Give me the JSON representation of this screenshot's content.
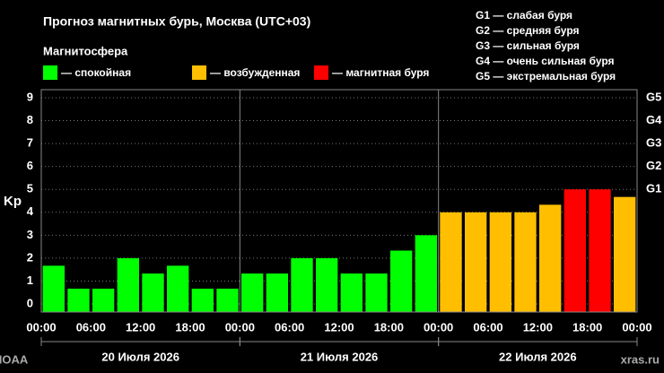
{
  "chart_data": {
    "type": "bar",
    "title": "Прогноз магнитных бурь, Москва (UTC+03)",
    "legend_title": "Магнитосфера",
    "legend": [
      {
        "label": "— спокойная",
        "color": "#00ff00"
      },
      {
        "label": "— возбужденная",
        "color": "#ffbf00"
      },
      {
        "label": "— магнитная буря",
        "color": "#ff0000"
      }
    ],
    "scale_legend": [
      "G1 — слабая буря",
      "G2 — средняя буря",
      "G3 — сильная буря",
      "G4 — очень сильная буря",
      "G5 — экстремальная буря"
    ],
    "y_label": "Kp",
    "x": [
      1.5,
      4.5,
      7.5,
      10.5,
      13.5,
      16.5,
      19.5,
      22.5,
      25.5,
      28.5,
      31.5,
      34.5,
      37.5,
      40.5,
      43.5,
      46.5,
      49.5,
      52.5,
      55.5,
      58.5,
      61.5,
      64.5,
      67.5,
      70.5
    ],
    "values": [
      1.67,
      0.67,
      0.67,
      2,
      1.33,
      1.67,
      0.67,
      0.67,
      1.33,
      1.33,
      2,
      2,
      1.33,
      1.33,
      2.33,
      3,
      4,
      4,
      4,
      4,
      4.33,
      5,
      5,
      4.67
    ],
    "colors": [
      "#00ff00",
      "#00ff00",
      "#00ff00",
      "#00ff00",
      "#00ff00",
      "#00ff00",
      "#00ff00",
      "#00ff00",
      "#00ff00",
      "#00ff00",
      "#00ff00",
      "#00ff00",
      "#00ff00",
      "#00ff00",
      "#00ff00",
      "#00ff00",
      "#ffbf00",
      "#ffbf00",
      "#ffbf00",
      "#ffbf00",
      "#ffbf00",
      "#ff0000",
      "#ff0000",
      "#ffbf00"
    ],
    "xlim": [
      0,
      72
    ],
    "xticks": [
      {
        "value": 0,
        "label": "00:00"
      },
      {
        "value": 6,
        "label": "06:00"
      },
      {
        "value": 12,
        "label": "12:00"
      },
      {
        "value": 18,
        "label": "18:00"
      },
      {
        "value": 24,
        "label": "00:00"
      },
      {
        "value": 30,
        "label": "06:00"
      },
      {
        "value": 36,
        "label": "12:00"
      },
      {
        "value": 42,
        "label": "18:00"
      },
      {
        "value": 48,
        "label": "00:00"
      },
      {
        "value": 54,
        "label": "06:00"
      },
      {
        "value": 60,
        "label": "12:00"
      },
      {
        "value": 66,
        "label": "18:00"
      },
      {
        "value": 72,
        "label": "00:00"
      }
    ],
    "days": [
      {
        "label": "20 Июля 2026",
        "start": 0,
        "end": 24
      },
      {
        "label": "21 Июля 2026",
        "start": 24,
        "end": 48
      },
      {
        "label": "22 Июля 2026",
        "start": 48,
        "end": 72
      }
    ],
    "ylim": [
      -0.35,
      9.35
    ],
    "yticks": [
      0,
      1,
      2,
      3,
      4,
      5,
      6,
      7,
      8,
      9
    ],
    "y2lim": [
      -0.35,
      9.35
    ],
    "y2ticks": [
      {
        "value": 5,
        "label": "G1"
      },
      {
        "value": 6,
        "label": "G2"
      },
      {
        "value": 7,
        "label": "G3"
      },
      {
        "value": 8,
        "label": "G4"
      },
      {
        "value": 9,
        "label": "G5"
      }
    ],
    "grid": true,
    "source": "NOAA",
    "site": "xras.ru"
  }
}
